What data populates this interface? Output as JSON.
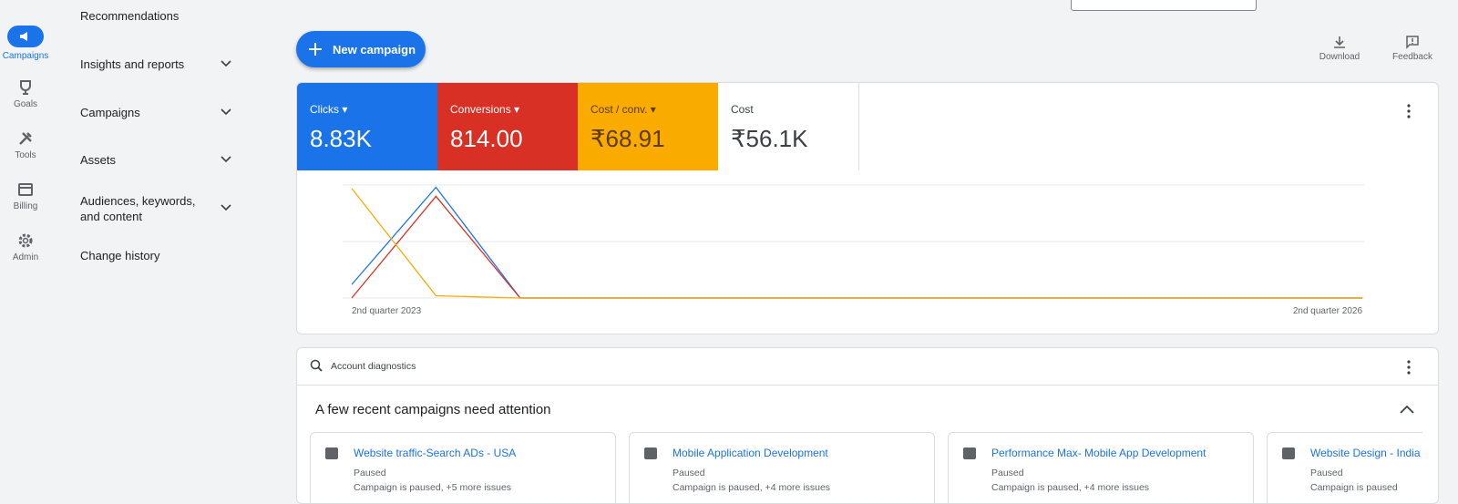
{
  "rail": [
    "Campaigns",
    "Goals",
    "Tools",
    "Billing",
    "Admin"
  ],
  "nav": [
    "Recommendations",
    "Insights and reports",
    "Campaigns",
    "Assets",
    "Audiences, keywords, and content",
    "Change history"
  ],
  "actions": {
    "new_campaign": "New campaign",
    "download": "Download",
    "feedback": "Feedback"
  },
  "metrics": [
    {
      "label": "Clicks",
      "value": "8.83K",
      "color": "#1a73e8"
    },
    {
      "label": "Conversions",
      "value": "814.00",
      "color": "#d93025"
    },
    {
      "label": "Cost / conv.",
      "value": "₹68.91",
      "color": "#f9ab00"
    },
    {
      "label": "Cost",
      "value": "₹56.1K",
      "color": "#ffffff"
    }
  ],
  "chart_data": {
    "type": "line",
    "x_labels": [
      "2nd quarter 2023",
      "2nd quarter 2026"
    ],
    "ylim": [
      0,
      100
    ],
    "yticks": [
      0,
      50,
      100
    ],
    "grid": true,
    "series": [
      {
        "name": "Clicks",
        "color": "#1a73e8",
        "values": [
          12,
          98,
          0,
          0,
          0,
          0,
          0,
          0,
          0,
          0,
          0,
          0,
          0
        ]
      },
      {
        "name": "Conversions",
        "color": "#d93025",
        "values": [
          0,
          90,
          0,
          0,
          0,
          0,
          0,
          0,
          0,
          0,
          0,
          0,
          0
        ]
      },
      {
        "name": "Cost / conv.",
        "color": "#f9ab00",
        "values": [
          97,
          2,
          0,
          0,
          0,
          0,
          0,
          0,
          0,
          0,
          0,
          0,
          0
        ]
      }
    ]
  },
  "diagnostics": {
    "title": "Account diagnostics",
    "heading": "A few recent campaigns need attention",
    "campaigns": [
      {
        "name": "Website traffic-Search ADs - USA",
        "status": "Paused",
        "issues": "Campaign is paused, +5 more issues"
      },
      {
        "name": "Mobile Application Development",
        "status": "Paused",
        "issues": "Campaign is paused, +4 more issues"
      },
      {
        "name": "Performance Max- Mobile App Development",
        "status": "Paused",
        "issues": "Campaign is paused, +4 more issues"
      },
      {
        "name": "Website Design - India",
        "status": "Paused",
        "issues": "Campaign is paused"
      }
    ]
  }
}
